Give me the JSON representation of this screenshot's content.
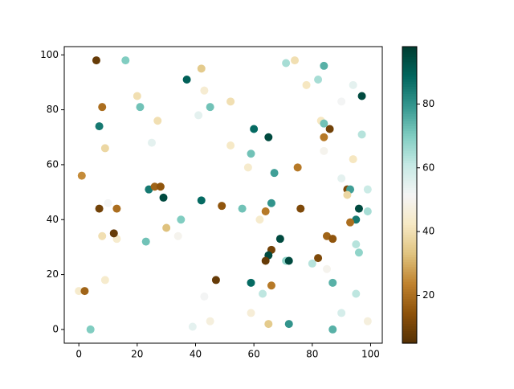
{
  "chart_data": {
    "type": "scatter",
    "colormap": "BrBG",
    "x": [
      6,
      16,
      42,
      37,
      71,
      74,
      84,
      97,
      94,
      82,
      78,
      8,
      20,
      21,
      43,
      45,
      52,
      41,
      27,
      7,
      9,
      25,
      60,
      65,
      59,
      52,
      83,
      84,
      86,
      84,
      84,
      90,
      97,
      1,
      58,
      67,
      75,
      94,
      90,
      92,
      93,
      92,
      99,
      96,
      95,
      99,
      93,
      24,
      26,
      28,
      29,
      10,
      7,
      13,
      42,
      49,
      56,
      64,
      66,
      76,
      62,
      35,
      30,
      8,
      13,
      12,
      23,
      34,
      69,
      85,
      87,
      95,
      96,
      66,
      65,
      64,
      71,
      72,
      80,
      82,
      85,
      47,
      59,
      87,
      66,
      9,
      0,
      2,
      43,
      63,
      95,
      59,
      90,
      45,
      65,
      72,
      99,
      4,
      39,
      87
    ],
    "values": [
      98,
      98,
      95,
      91,
      97,
      98,
      96,
      85,
      89,
      91,
      89,
      81,
      85,
      81,
      87,
      81,
      83,
      78,
      76,
      74,
      66,
      68,
      73,
      70,
      64,
      67,
      76,
      75,
      73,
      70,
      65,
      83,
      71,
      56,
      59,
      57,
      59,
      62,
      55,
      51,
      51,
      49,
      51,
      44,
      40,
      43,
      39,
      51,
      52,
      52,
      48,
      46,
      44,
      44,
      47,
      45,
      44,
      43,
      46,
      44,
      40,
      40,
      37,
      34,
      33,
      35,
      32,
      34,
      33,
      34,
      33,
      31,
      28,
      29,
      27,
      25,
      25,
      25,
      24,
      26,
      22,
      18,
      17,
      17,
      16,
      18,
      14,
      14,
      12,
      13,
      13,
      6,
      6,
      3,
      2,
      2,
      3,
      0,
      1,
      0
    ],
    "c": [
      8,
      70,
      35,
      90,
      65,
      40,
      75,
      95,
      55,
      65,
      42,
      20,
      40,
      72,
      45,
      72,
      40,
      55,
      40,
      85,
      38,
      55,
      88,
      95,
      72,
      43,
      42,
      72,
      10,
      22,
      50,
      52,
      63,
      25,
      44,
      78,
      22,
      42,
      55,
      12,
      78,
      38,
      60,
      95,
      85,
      65,
      20,
      85,
      18,
      15,
      95,
      52,
      10,
      20,
      88,
      15,
      72,
      22,
      80,
      12,
      44,
      70,
      33,
      40,
      44,
      8,
      72,
      50,
      95,
      18,
      15,
      63,
      68,
      10,
      95,
      8,
      68,
      95,
      63,
      12,
      50,
      8,
      88,
      75,
      22,
      44,
      44,
      18,
      52,
      62,
      62,
      46,
      58,
      47,
      35,
      80,
      47,
      70,
      55,
      75
    ],
    "xlim": [
      -5,
      104
    ],
    "ylim": [
      -5,
      103
    ],
    "clim": [
      5,
      98
    ],
    "xticks": [
      0,
      20,
      40,
      60,
      80,
      100
    ],
    "yticks": [
      0,
      20,
      40,
      60,
      80,
      100
    ],
    "cticks": [
      20,
      40,
      60,
      80
    ]
  }
}
